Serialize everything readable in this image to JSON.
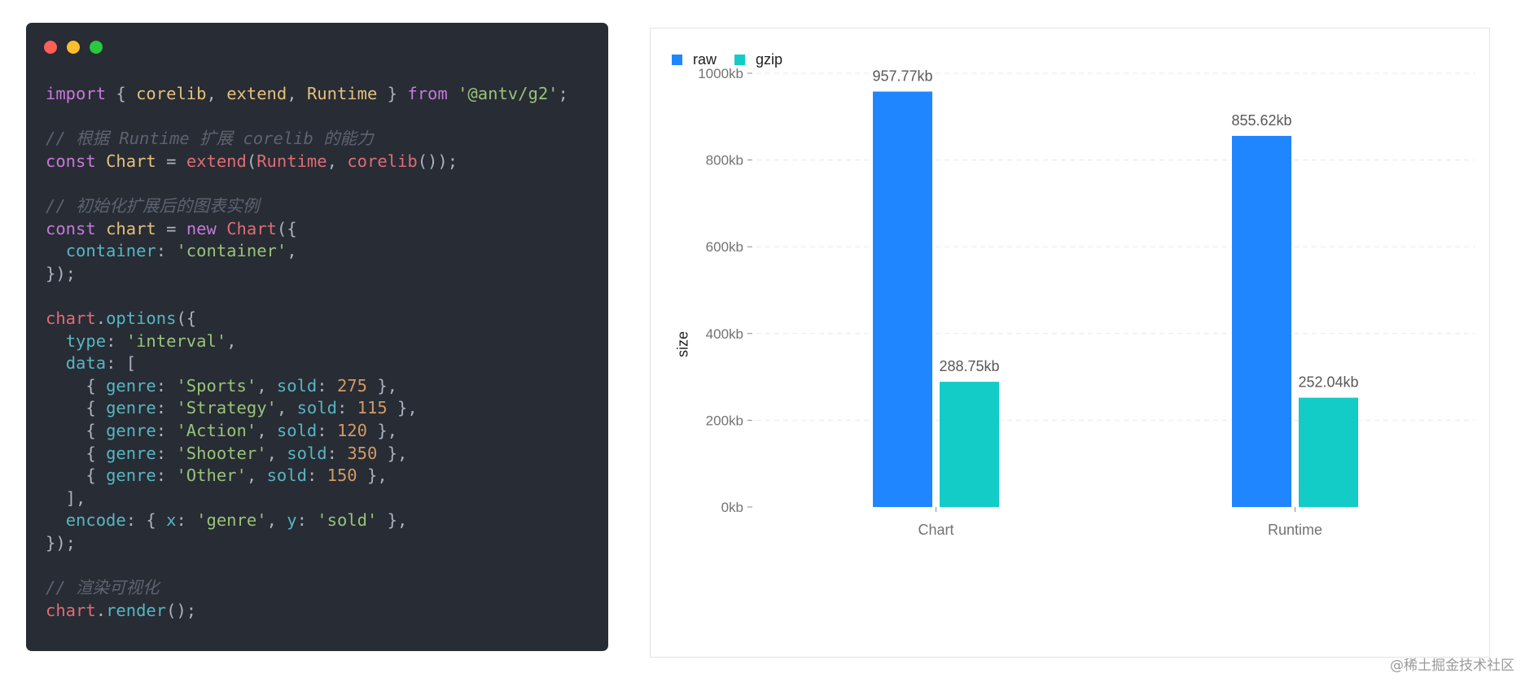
{
  "code_panel": {
    "lines": [
      [
        {
          "t": "import",
          "c": "kw"
        },
        {
          "t": " { ",
          "c": "pun"
        },
        {
          "t": "corelib",
          "c": "id"
        },
        {
          "t": ", ",
          "c": "pun"
        },
        {
          "t": "extend",
          "c": "id"
        },
        {
          "t": ", ",
          "c": "pun"
        },
        {
          "t": "Runtime",
          "c": "id"
        },
        {
          "t": " } ",
          "c": "pun"
        },
        {
          "t": "from",
          "c": "kw"
        },
        {
          "t": " ",
          "c": "pun"
        },
        {
          "t": "'@antv/g2'",
          "c": "str"
        },
        {
          "t": ";",
          "c": "pun"
        }
      ],
      [],
      [
        {
          "t": "// 根据 Runtime 扩展 corelib 的能力",
          "c": "cmt"
        }
      ],
      [
        {
          "t": "const",
          "c": "kw"
        },
        {
          "t": " ",
          "c": "pun"
        },
        {
          "t": "Chart",
          "c": "id"
        },
        {
          "t": " = ",
          "c": "pun"
        },
        {
          "t": "extend",
          "c": "fn"
        },
        {
          "t": "(",
          "c": "pun"
        },
        {
          "t": "Runtime",
          "c": "fn"
        },
        {
          "t": ", ",
          "c": "pun"
        },
        {
          "t": "corelib",
          "c": "fn"
        },
        {
          "t": "());",
          "c": "pun"
        }
      ],
      [],
      [
        {
          "t": "// 初始化扩展后的图表实例",
          "c": "cmt"
        }
      ],
      [
        {
          "t": "const",
          "c": "kw"
        },
        {
          "t": " ",
          "c": "pun"
        },
        {
          "t": "chart",
          "c": "id"
        },
        {
          "t": " = ",
          "c": "pun"
        },
        {
          "t": "new",
          "c": "kw"
        },
        {
          "t": " ",
          "c": "pun"
        },
        {
          "t": "Chart",
          "c": "fn"
        },
        {
          "t": "({",
          "c": "pun"
        }
      ],
      [
        {
          "t": "  ",
          "c": "pun"
        },
        {
          "t": "container",
          "c": "prop"
        },
        {
          "t": ": ",
          "c": "pun"
        },
        {
          "t": "'container'",
          "c": "str"
        },
        {
          "t": ",",
          "c": "pun"
        }
      ],
      [
        {
          "t": "});",
          "c": "pun"
        }
      ],
      [],
      [
        {
          "t": "chart",
          "c": "fn"
        },
        {
          "t": ".",
          "c": "pun"
        },
        {
          "t": "options",
          "c": "prop"
        },
        {
          "t": "({",
          "c": "pun"
        }
      ],
      [
        {
          "t": "  ",
          "c": "pun"
        },
        {
          "t": "type",
          "c": "prop"
        },
        {
          "t": ": ",
          "c": "pun"
        },
        {
          "t": "'interval'",
          "c": "str"
        },
        {
          "t": ",",
          "c": "pun"
        }
      ],
      [
        {
          "t": "  ",
          "c": "pun"
        },
        {
          "t": "data",
          "c": "prop"
        },
        {
          "t": ": [",
          "c": "pun"
        }
      ],
      [
        {
          "t": "    { ",
          "c": "pun"
        },
        {
          "t": "genre",
          "c": "prop"
        },
        {
          "t": ": ",
          "c": "pun"
        },
        {
          "t": "'Sports'",
          "c": "str"
        },
        {
          "t": ", ",
          "c": "pun"
        },
        {
          "t": "sold",
          "c": "prop"
        },
        {
          "t": ": ",
          "c": "pun"
        },
        {
          "t": "275",
          "c": "num"
        },
        {
          "t": " },",
          "c": "pun"
        }
      ],
      [
        {
          "t": "    { ",
          "c": "pun"
        },
        {
          "t": "genre",
          "c": "prop"
        },
        {
          "t": ": ",
          "c": "pun"
        },
        {
          "t": "'Strategy'",
          "c": "str"
        },
        {
          "t": ", ",
          "c": "pun"
        },
        {
          "t": "sold",
          "c": "prop"
        },
        {
          "t": ": ",
          "c": "pun"
        },
        {
          "t": "115",
          "c": "num"
        },
        {
          "t": " },",
          "c": "pun"
        }
      ],
      [
        {
          "t": "    { ",
          "c": "pun"
        },
        {
          "t": "genre",
          "c": "prop"
        },
        {
          "t": ": ",
          "c": "pun"
        },
        {
          "t": "'Action'",
          "c": "str"
        },
        {
          "t": ", ",
          "c": "pun"
        },
        {
          "t": "sold",
          "c": "prop"
        },
        {
          "t": ": ",
          "c": "pun"
        },
        {
          "t": "120",
          "c": "num"
        },
        {
          "t": " },",
          "c": "pun"
        }
      ],
      [
        {
          "t": "    { ",
          "c": "pun"
        },
        {
          "t": "genre",
          "c": "prop"
        },
        {
          "t": ": ",
          "c": "pun"
        },
        {
          "t": "'Shooter'",
          "c": "str"
        },
        {
          "t": ", ",
          "c": "pun"
        },
        {
          "t": "sold",
          "c": "prop"
        },
        {
          "t": ": ",
          "c": "pun"
        },
        {
          "t": "350",
          "c": "num"
        },
        {
          "t": " },",
          "c": "pun"
        }
      ],
      [
        {
          "t": "    { ",
          "c": "pun"
        },
        {
          "t": "genre",
          "c": "prop"
        },
        {
          "t": ": ",
          "c": "pun"
        },
        {
          "t": "'Other'",
          "c": "str"
        },
        {
          "t": ", ",
          "c": "pun"
        },
        {
          "t": "sold",
          "c": "prop"
        },
        {
          "t": ": ",
          "c": "pun"
        },
        {
          "t": "150",
          "c": "num"
        },
        {
          "t": " },",
          "c": "pun"
        }
      ],
      [
        {
          "t": "  ],",
          "c": "pun"
        }
      ],
      [
        {
          "t": "  ",
          "c": "pun"
        },
        {
          "t": "encode",
          "c": "prop"
        },
        {
          "t": ": { ",
          "c": "pun"
        },
        {
          "t": "x",
          "c": "prop"
        },
        {
          "t": ": ",
          "c": "pun"
        },
        {
          "t": "'genre'",
          "c": "str"
        },
        {
          "t": ", ",
          "c": "pun"
        },
        {
          "t": "y",
          "c": "prop"
        },
        {
          "t": ": ",
          "c": "pun"
        },
        {
          "t": "'sold'",
          "c": "str"
        },
        {
          "t": " },",
          "c": "pun"
        }
      ],
      [
        {
          "t": "});",
          "c": "pun"
        }
      ],
      [],
      [
        {
          "t": "// 渲染可视化",
          "c": "cmt"
        }
      ],
      [
        {
          "t": "chart",
          "c": "fn"
        },
        {
          "t": ".",
          "c": "pun"
        },
        {
          "t": "render",
          "c": "prop"
        },
        {
          "t": "();",
          "c": "pun"
        }
      ]
    ]
  },
  "chart_data": {
    "type": "bar",
    "categories": [
      "Chart",
      "Runtime"
    ],
    "series": [
      {
        "name": "raw",
        "values": [
          957.77,
          855.62
        ],
        "labels": [
          "957.77kb",
          "855.62kb"
        ],
        "color": "#1f86ff"
      },
      {
        "name": "gzip",
        "values": [
          288.75,
          252.04
        ],
        "labels": [
          "288.75kb",
          "252.04kb"
        ],
        "color": "#13cbc7"
      }
    ],
    "ylabel": "size",
    "ylim": [
      0,
      1000
    ],
    "yticks": [
      {
        "value": 0,
        "label": "0kb"
      },
      {
        "value": 200,
        "label": "200kb"
      },
      {
        "value": 400,
        "label": "400kb"
      },
      {
        "value": 600,
        "label": "600kb"
      },
      {
        "value": 800,
        "label": "800kb"
      },
      {
        "value": 1000,
        "label": "1000kb"
      }
    ],
    "grid": true,
    "legend_position": "top-left"
  },
  "watermark": "@稀土掘金技术社区"
}
